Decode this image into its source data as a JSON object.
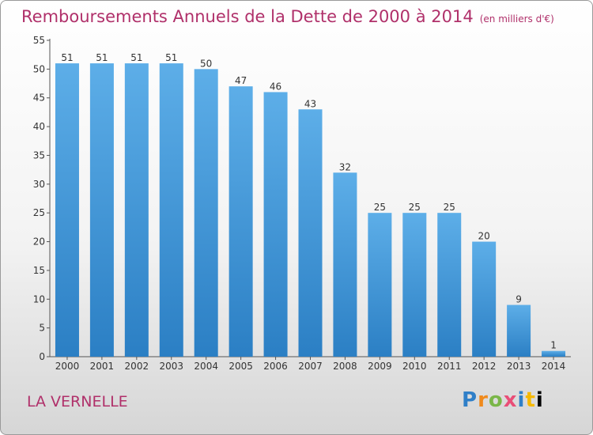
{
  "header": {
    "title": "Remboursements Annuels de la Dette de 2000 à 2014",
    "unit": "(en milliers d'€)"
  },
  "footer": {
    "commune": "LA VERNELLE",
    "logo_letters": [
      "P",
      "r",
      "o",
      "x",
      "i",
      "t",
      "i"
    ]
  },
  "colors": {
    "title": "#b0306a",
    "bar_top": "#5daee8",
    "bar_bottom": "#2b7fc4"
  },
  "chart_data": {
    "type": "bar",
    "title": "Remboursements Annuels de la Dette de 2000 à 2014",
    "xlabel": "",
    "ylabel": "",
    "categories": [
      "2000",
      "2001",
      "2002",
      "2003",
      "2004",
      "2005",
      "2006",
      "2007",
      "2008",
      "2009",
      "2010",
      "2011",
      "2012",
      "2013",
      "2014"
    ],
    "values": [
      51,
      51,
      51,
      51,
      50,
      47,
      46,
      43,
      32,
      25,
      25,
      25,
      20,
      9,
      1
    ],
    "ylim": [
      0,
      55
    ],
    "yticks": [
      0,
      5,
      10,
      15,
      20,
      25,
      30,
      35,
      40,
      45,
      50,
      55
    ],
    "grid": false,
    "legend": "none"
  }
}
